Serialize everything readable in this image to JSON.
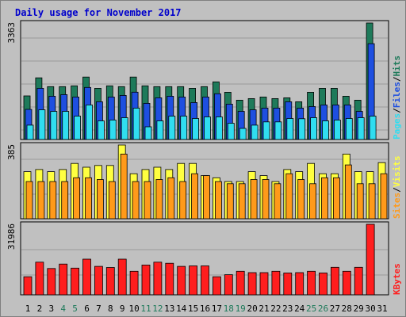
{
  "title": "Daily usage for November 2017",
  "colors": {
    "hits": "#1e7a5a",
    "files": "#1e4fe0",
    "pages": "#30ddf0",
    "visits": "#ffff40",
    "sites": "#ff9a1a",
    "kbytes": "#ff1e1e",
    "weekend_label": "#1e7a5a",
    "weekday_label": "#000000"
  },
  "chart_data": [
    {
      "type": "bar",
      "panel": "hits-files-pages",
      "ymax_label": "3363",
      "ylim": [
        0,
        3363
      ],
      "right_labels": [
        {
          "text": "Pages",
          "color": "#30ddf0"
        },
        {
          "text": "/",
          "color": "#000000"
        },
        {
          "text": "Files",
          "color": "#1e4fe0"
        },
        {
          "text": "/",
          "color": "#000000"
        },
        {
          "text": "Hits",
          "color": "#1e7a5a"
        }
      ],
      "categories": [
        "1",
        "2",
        "3",
        "4",
        "5",
        "6",
        "7",
        "8",
        "9",
        "10",
        "11",
        "12",
        "13",
        "14",
        "15",
        "16",
        "17",
        "18",
        "19",
        "20",
        "21",
        "22",
        "23",
        "24",
        "25",
        "26",
        "27",
        "28",
        "29",
        "30",
        "31"
      ],
      "series": [
        {
          "name": "Hits",
          "values": [
            1258,
            1779,
            1525,
            1525,
            1548,
            1802,
            1479,
            1548,
            1525,
            1802,
            1548,
            1525,
            1525,
            1525,
            1479,
            1525,
            1663,
            1364,
            1135,
            1181,
            1227,
            1181,
            1204,
            1089,
            1364,
            1479,
            1479,
            1250,
            1135,
            3363,
            0
          ]
        },
        {
          "name": "Files",
          "values": [
            870,
            1479,
            1250,
            1296,
            1227,
            1502,
            1089,
            1227,
            1273,
            1365,
            1043,
            1204,
            1250,
            1227,
            1067,
            1227,
            1319,
            1020,
            813,
            859,
            905,
            905,
            1089,
            905,
            951,
            997,
            997,
            997,
            813,
            2765,
            0
          ]
        },
        {
          "name": "Pages",
          "values": [
            413,
            859,
            813,
            813,
            676,
            997,
            538,
            563,
            630,
            905,
            365,
            538,
            676,
            676,
            607,
            653,
            653,
            470,
            321,
            413,
            507,
            507,
            607,
            600,
            630,
            538,
            560,
            607,
            630,
            676,
            0
          ]
        }
      ]
    },
    {
      "type": "bar",
      "panel": "visits-sites",
      "ymax_label": "385",
      "ylim": [
        0,
        385
      ],
      "right_labels": [
        {
          "text": "Sites",
          "color": "#ff9a1a"
        },
        {
          "text": "/",
          "color": "#000000"
        },
        {
          "text": "Visits",
          "color": "#ffff40"
        }
      ],
      "categories": [
        "1",
        "2",
        "3",
        "4",
        "5",
        "6",
        "7",
        "8",
        "9",
        "10",
        "11",
        "12",
        "13",
        "14",
        "15",
        "16",
        "17",
        "18",
        "19",
        "20",
        "21",
        "22",
        "23",
        "24",
        "25",
        "26",
        "27",
        "28",
        "29",
        "30",
        "31"
      ],
      "series": [
        {
          "name": "Visits",
          "values": [
            246,
            257,
            246,
            257,
            289,
            269,
            278,
            278,
            385,
            235,
            257,
            269,
            257,
            289,
            289,
            225,
            214,
            194,
            194,
            246,
            225,
            194,
            257,
            246,
            289,
            235,
            235,
            338,
            246,
            246,
            293
          ]
        },
        {
          "name": "Sites",
          "values": [
            194,
            194,
            194,
            194,
            214,
            214,
            205,
            194,
            338,
            194,
            194,
            205,
            214,
            194,
            235,
            225,
            194,
            183,
            183,
            205,
            205,
            183,
            235,
            205,
            183,
            214,
            214,
            281,
            183,
            183,
            235
          ]
        }
      ]
    },
    {
      "type": "bar",
      "panel": "kbytes",
      "ymax_label": "31986",
      "ylim": [
        0,
        31986
      ],
      "right_labels": [
        {
          "text": "KBytes",
          "color": "#ff1e1e"
        }
      ],
      "categories": [
        "1",
        "2",
        "3",
        "4",
        "5",
        "6",
        "7",
        "8",
        "9",
        "10",
        "11",
        "12",
        "13",
        "14",
        "15",
        "16",
        "17",
        "18",
        "19",
        "20",
        "21",
        "22",
        "23",
        "24",
        "25",
        "26",
        "27",
        "28",
        "29",
        "30",
        "31"
      ],
      "series": [
        {
          "name": "KBytes",
          "values": [
            8210,
            14810,
            11920,
            13940,
            12110,
            16190,
            12890,
            12390,
            16190,
            10660,
            13530,
            14810,
            14300,
            12890,
            13120,
            13120,
            8210,
            9120,
            10660,
            10070,
            10070,
            10660,
            9930,
            10070,
            10660,
            9930,
            12480,
            10660,
            12480,
            31986,
            0
          ]
        }
      ]
    }
  ]
}
